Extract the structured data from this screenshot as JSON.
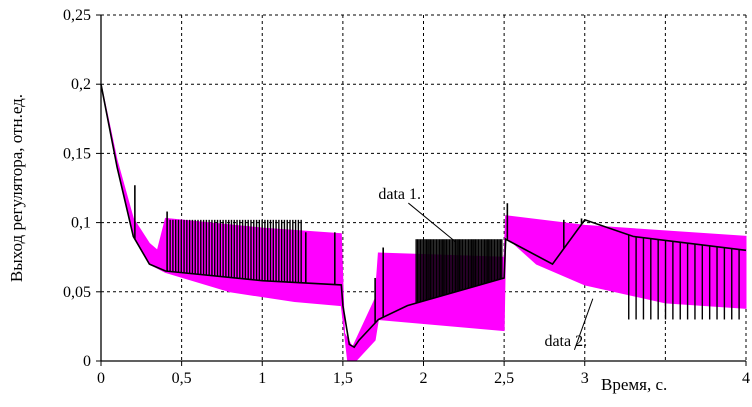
{
  "chart_data": {
    "type": "line",
    "xlabel": "Время, с.",
    "ylabel": "Выход регулятора, отн.ед.",
    "xlim": [
      0,
      4
    ],
    "ylim": [
      0,
      0.25
    ],
    "x_ticks": [
      {
        "v": 0,
        "label": "0"
      },
      {
        "v": 0.5,
        "label": "0,5"
      },
      {
        "v": 1,
        "label": "1"
      },
      {
        "v": 1.5,
        "label": "1,5"
      },
      {
        "v": 2,
        "label": "2"
      },
      {
        "v": 2.5,
        "label": "2,5"
      },
      {
        "v": 3,
        "label": "3"
      },
      {
        "v": 4,
        "label": "4"
      }
    ],
    "y_ticks": [
      {
        "v": 0,
        "label": "0"
      },
      {
        "v": 0.05,
        "label": "0,05"
      },
      {
        "v": 0.1,
        "label": "0,1"
      },
      {
        "v": 0.15,
        "label": "0,15"
      },
      {
        "v": 0.2,
        "label": "0,2"
      },
      {
        "v": 0.25,
        "label": "0,25"
      }
    ],
    "grid": true,
    "colors": {
      "data2": "#ff00ff",
      "data1": "#000000"
    },
    "annotations": [
      {
        "text": "data 1.",
        "x": 1.72,
        "y": 0.117,
        "arrow_to": [
          2.2,
          0.086
        ]
      },
      {
        "text": "data 2.",
        "x": 2.75,
        "y": 0.011,
        "arrow_to": [
          3.05,
          0.045
        ]
      }
    ],
    "series": [
      {
        "envelope_upper": [
          [
            0,
            0.2
          ],
          [
            0.1,
            0.145
          ],
          [
            0.2,
            0.103
          ],
          [
            0.3,
            0.085
          ],
          [
            0.35,
            0.08
          ],
          [
            0.4,
            0.103
          ],
          [
            1.0,
            0.096
          ],
          [
            1.49,
            0.092
          ],
          [
            1.51,
            0.02
          ],
          [
            1.56,
            0.01
          ],
          [
            1.7,
            0.045
          ],
          [
            1.72,
            0.078
          ],
          [
            2.5,
            0.075
          ],
          [
            2.51,
            0.105
          ],
          [
            3.0,
            0.098
          ],
          [
            4.0,
            0.09
          ]
        ],
        "envelope_lower": [
          [
            0,
            0.2
          ],
          [
            0.1,
            0.14
          ],
          [
            0.2,
            0.09
          ],
          [
            0.3,
            0.07
          ],
          [
            0.4,
            0.064
          ],
          [
            0.8,
            0.05
          ],
          [
            1.2,
            0.043
          ],
          [
            1.49,
            0.04
          ],
          [
            1.51,
            0.02
          ],
          [
            1.53,
            0.0
          ],
          [
            1.58,
            0.0
          ],
          [
            1.7,
            0.015
          ],
          [
            1.72,
            0.03
          ],
          [
            2.5,
            0.022
          ],
          [
            2.51,
            0.09
          ],
          [
            2.7,
            0.07
          ],
          [
            3.0,
            0.055
          ],
          [
            3.5,
            0.042
          ],
          [
            4.0,
            0.038
          ]
        ]
      },
      {
        "base": [
          [
            0,
            0.2
          ],
          [
            0.1,
            0.14
          ],
          [
            0.2,
            0.09
          ],
          [
            0.3,
            0.07
          ],
          [
            0.4,
            0.065
          ],
          [
            1.0,
            0.058
          ],
          [
            1.49,
            0.055
          ],
          [
            1.5,
            0.04
          ],
          [
            1.54,
            0.012
          ],
          [
            1.57,
            0.01
          ],
          [
            1.6,
            0.015
          ],
          [
            1.72,
            0.03
          ],
          [
            1.9,
            0.04
          ],
          [
            2.5,
            0.06
          ],
          [
            2.51,
            0.088
          ],
          [
            2.8,
            0.07
          ],
          [
            3.0,
            0.102
          ],
          [
            3.3,
            0.09
          ],
          [
            4.0,
            0.08
          ]
        ],
        "spikes": [
          {
            "x": 0.21,
            "y": 0.127
          },
          {
            "x": 0.41,
            "y": 0.108
          },
          {
            "x": 1.27,
            "y": 0.093
          },
          {
            "x": 1.45,
            "y": 0.093
          },
          {
            "x": 1.7,
            "y": 0.06
          },
          {
            "x": 1.75,
            "y": 0.082
          },
          {
            "x": 2.52,
            "y": 0.114
          },
          {
            "x": 2.87,
            "y": 0.102
          },
          {
            "x": 2.98,
            "y": 0.103
          }
        ],
        "dense_regions": [
          {
            "x0": 0.42,
            "x1": 1.25,
            "top": 0.102,
            "count": 48
          },
          {
            "x0": 1.95,
            "x1": 2.49,
            "top": 0.088,
            "count": 60
          },
          {
            "x0": 3.25,
            "x1": 3.98,
            "bottom": 0.03,
            "count": 16
          }
        ]
      }
    ]
  }
}
